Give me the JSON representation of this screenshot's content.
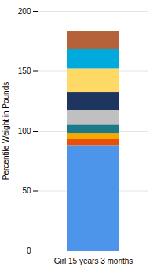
{
  "chart_data": {
    "type": "bar",
    "categories": [
      "Girl 15 years 3 months"
    ],
    "series": [
      {
        "color": "#4d94eb",
        "values": [
          88
        ]
      },
      {
        "color": "#e8500a",
        "values": [
          5
        ]
      },
      {
        "color": "#f5a800",
        "values": [
          5
        ]
      },
      {
        "color": "#1a7a8a",
        "values": [
          7
        ]
      },
      {
        "color": "#c0c0c0",
        "values": [
          12
        ]
      },
      {
        "color": "#1e3560",
        "values": [
          15
        ]
      },
      {
        "color": "#ffd966",
        "values": [
          20
        ]
      },
      {
        "color": "#00aadd",
        "values": [
          16
        ]
      },
      {
        "color": "#b5623a",
        "values": [
          15
        ]
      }
    ],
    "stacked": true,
    "ylabel": "Percentile Weight in Pounds",
    "ylim": [
      0,
      200
    ],
    "yticks": [
      0,
      50,
      100,
      150,
      200
    ],
    "grid": true
  }
}
